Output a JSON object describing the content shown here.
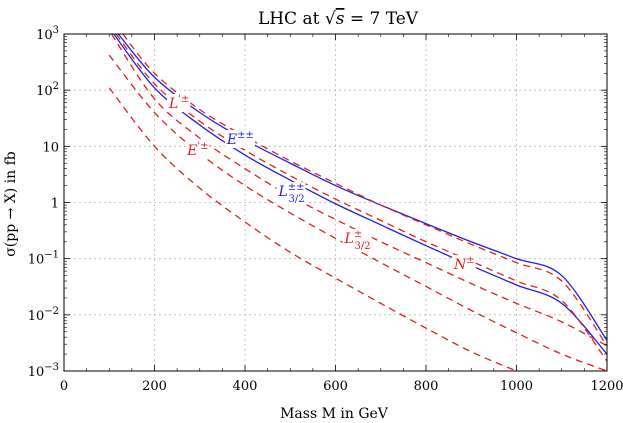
{
  "chart_data": {
    "type": "line",
    "title": "LHC at √s = 7 TeV",
    "title_parts": {
      "prefix": "LHC at ",
      "root_symbol": "√",
      "root_arg": "s",
      "suffix": " = 7 TeV"
    },
    "xlabel": "Mass M in GeV",
    "ylabel": "σ(pp → X) in fb",
    "xlim": [
      0,
      1200
    ],
    "ylim": [
      0.001,
      1000
    ],
    "yscale": "log",
    "grid": true,
    "x_ticks": [
      {
        "value": 0,
        "label": "0"
      },
      {
        "value": 200,
        "label": "200"
      },
      {
        "value": 400,
        "label": "400"
      },
      {
        "value": 600,
        "label": "600"
      },
      {
        "value": 800,
        "label": "800"
      },
      {
        "value": 1000,
        "label": "1000"
      },
      {
        "value": 1200,
        "label": "1200"
      }
    ],
    "y_ticks": [
      {
        "value": 0.001,
        "base": "10",
        "exp": "−3"
      },
      {
        "value": 0.01,
        "base": "10",
        "exp": "−2"
      },
      {
        "value": 0.1,
        "base": "10",
        "exp": "−1"
      },
      {
        "value": 1,
        "base": "1",
        "exp": ""
      },
      {
        "value": 10,
        "base": "10",
        "exp": ""
      },
      {
        "value": 100,
        "base": "10",
        "exp": "2"
      },
      {
        "value": 1000,
        "base": "10",
        "exp": "3"
      }
    ],
    "colors": {
      "blue": "#2020e0",
      "red": "#e02020",
      "grid": "#b8b8b8"
    },
    "series": [
      {
        "id": "blue-upper",
        "style": "solid",
        "color": "#2020e0",
        "points": [
          [
            120,
            1000
          ],
          [
            200,
            170
          ],
          [
            300,
            40
          ],
          [
            400,
            13
          ],
          [
            500,
            5
          ],
          [
            600,
            2
          ],
          [
            700,
            0.9
          ],
          [
            800,
            0.42
          ],
          [
            900,
            0.2
          ],
          [
            1000,
            0.1
          ],
          [
            1100,
            0.05
          ],
          [
            1200,
            0.0035
          ]
        ]
      },
      {
        "id": "blue-lower",
        "style": "solid",
        "color": "#2020e0",
        "points": [
          [
            110,
            1000
          ],
          [
            200,
            110
          ],
          [
            300,
            24
          ],
          [
            400,
            7
          ],
          [
            500,
            2.5
          ],
          [
            600,
            0.95
          ],
          [
            700,
            0.4
          ],
          [
            800,
            0.17
          ],
          [
            900,
            0.075
          ],
          [
            1000,
            0.034
          ],
          [
            1100,
            0.016
          ],
          [
            1200,
            0.002
          ]
        ]
      },
      {
        "id": "red-1",
        "style": "dashed",
        "color": "#e02020",
        "points": [
          [
            130,
            1000
          ],
          [
            200,
            200
          ],
          [
            300,
            45
          ],
          [
            400,
            15
          ],
          [
            500,
            5.5
          ],
          [
            600,
            2.2
          ],
          [
            700,
            0.9
          ],
          [
            800,
            0.4
          ],
          [
            900,
            0.18
          ],
          [
            1000,
            0.085
          ],
          [
            1100,
            0.04
          ],
          [
            1200,
            0.0028
          ]
        ]
      },
      {
        "id": "red-2",
        "style": "dashed",
        "color": "#e02020",
        "points": [
          [
            115,
            1000
          ],
          [
            200,
            130
          ],
          [
            300,
            28
          ],
          [
            400,
            8.5
          ],
          [
            500,
            3
          ],
          [
            600,
            1.15
          ],
          [
            700,
            0.48
          ],
          [
            800,
            0.2
          ],
          [
            900,
            0.09
          ],
          [
            1000,
            0.04
          ],
          [
            1100,
            0.018
          ],
          [
            1200,
            0.0015
          ]
        ]
      },
      {
        "id": "red-3",
        "style": "dashed",
        "color": "#e02020",
        "points": [
          [
            105,
            1000
          ],
          [
            200,
            70
          ],
          [
            300,
            14
          ],
          [
            400,
            4
          ],
          [
            500,
            1.3
          ],
          [
            600,
            0.5
          ],
          [
            700,
            0.2
          ],
          [
            800,
            0.085
          ],
          [
            900,
            0.036
          ],
          [
            1000,
            0.016
          ],
          [
            1100,
            0.0075
          ],
          [
            1200,
            0.0028
          ]
        ]
      },
      {
        "id": "red-4",
        "style": "dashed",
        "color": "#e02020",
        "points": [
          [
            100,
            420
          ],
          [
            200,
            40
          ],
          [
            300,
            7.5
          ],
          [
            400,
            2
          ],
          [
            500,
            0.65
          ],
          [
            600,
            0.23
          ],
          [
            700,
            0.085
          ],
          [
            800,
            0.032
          ],
          [
            900,
            0.012
          ],
          [
            1000,
            0.0048
          ],
          [
            1100,
            0.002
          ],
          [
            1200,
            0.001
          ]
        ]
      },
      {
        "id": "red-5",
        "style": "dashed",
        "color": "#e02020",
        "points": [
          [
            100,
            110
          ],
          [
            200,
            10
          ],
          [
            300,
            1.8
          ],
          [
            400,
            0.45
          ],
          [
            500,
            0.13
          ],
          [
            600,
            0.045
          ],
          [
            700,
            0.016
          ],
          [
            800,
            0.0058
          ],
          [
            900,
            0.0022
          ],
          [
            1000,
            0.001
          ]
        ]
      }
    ],
    "annotations": [
      {
        "id": "label-L-prime",
        "base": "L",
        "prime": "'",
        "sup": "±",
        "sub": "",
        "color": "#e02020",
        "x": 232,
        "y": 48
      },
      {
        "id": "label-E-prime",
        "base": "E",
        "prime": "'",
        "sup": "±",
        "sub": "",
        "color": "#e02020",
        "x": 272,
        "y": 7
      },
      {
        "id": "label-E-pp",
        "base": "E",
        "prime": "",
        "sup": "±±",
        "sub": "",
        "color": "#2020e0",
        "x": 360,
        "y": 11
      },
      {
        "id": "label-L32-pp",
        "base": "L",
        "prime": "",
        "sup": "±±",
        "sub": "3/2",
        "color": "#2020e0",
        "x": 474,
        "y": 1.3
      },
      {
        "id": "label-L32-p",
        "base": "L",
        "prime": "",
        "sup": "±",
        "sub": "3/2",
        "color": "#e02020",
        "x": 620,
        "y": 0.19
      },
      {
        "id": "label-N",
        "base": "N",
        "prime": "",
        "sup": "±",
        "sub": "",
        "color": "#e02020",
        "x": 862,
        "y": 0.065
      }
    ]
  }
}
